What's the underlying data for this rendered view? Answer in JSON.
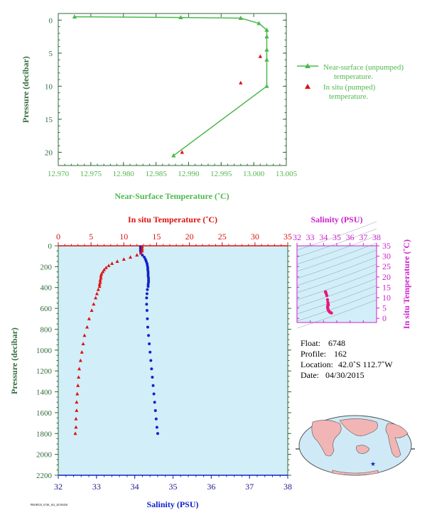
{
  "colors": {
    "green": "#4db84d",
    "dark_green": "#2f6b3a",
    "red": "#dd1111",
    "blue": "#1122cc",
    "navy": "#1a1a8c",
    "magenta": "#cc22cc",
    "pink": "#e8187c",
    "panel_bg": "#d2eef8",
    "land": "#f2b5b5",
    "ocean": "#cfeaf6"
  },
  "chart_data": [
    {
      "id": "near-surface",
      "type": "line",
      "xlabel": "Near-Surface Temperature (˚C)",
      "ylabel": "Pressure (decibar)",
      "xlim": [
        12.97,
        13.005
      ],
      "ylim": [
        22,
        -1
      ],
      "x_ticks": [
        12.97,
        12.975,
        12.98,
        12.985,
        12.99,
        12.995,
        13.0,
        13.005
      ],
      "x_tick_labels": [
        "12.970",
        "12.975",
        "12.980",
        "12.985",
        "12.990",
        "12.995",
        "13.000",
        "13.005"
      ],
      "y_ticks": [
        0,
        5,
        10,
        15,
        20
      ],
      "y_tick_labels": [
        "0",
        "5",
        "10",
        "15",
        "20"
      ],
      "series": [
        {
          "name": "Near-surface (unpumped) temperature.",
          "x": [
            12.9725,
            12.9888,
            12.998,
            13.0008,
            13.002,
            13.002,
            13.002,
            13.002,
            13.002,
            12.9877
          ],
          "y": [
            -0.5,
            -0.4,
            -0.3,
            0.5,
            1.5,
            2.5,
            4.5,
            6.0,
            10.0,
            20.5
          ]
        },
        {
          "name": "In situ (pumped) temperature.",
          "x": [
            13.001,
            12.998,
            12.989
          ],
          "y": [
            5.5,
            9.5,
            20.0
          ]
        }
      ],
      "legend": [
        {
          "line1": "Near-surface (unpumped)",
          "line2": "temperature."
        },
        {
          "line1": "In situ (pumped)",
          "line2": "temperature."
        }
      ],
      "legend_position": "right"
    },
    {
      "id": "profile",
      "type": "scatter",
      "top_xlabel": "In situ Temperature (˚C)",
      "bottom_xlabel": "Salinity (PSU)",
      "ylabel": "Pressure (decibar)",
      "temp_lim": [
        0,
        35
      ],
      "sal_lim": [
        32,
        38
      ],
      "ylim": [
        2200,
        0
      ],
      "temp_ticks": [
        "0",
        "5",
        "10",
        "15",
        "20",
        "25",
        "30",
        "35"
      ],
      "sal_ticks": [
        "32",
        "33",
        "34",
        "35",
        "36",
        "37",
        "38"
      ],
      "p_ticks": [
        "0",
        "200",
        "400",
        "600",
        "800",
        "1000",
        "1200",
        "1400",
        "1600",
        "1800",
        "2000",
        "2200"
      ],
      "temperature": {
        "pressure": [
          10,
          30,
          50,
          70,
          90,
          110,
          130,
          150,
          170,
          190,
          210,
          230,
          250,
          270,
          290,
          310,
          330,
          350,
          370,
          390,
          420,
          460,
          500,
          560,
          620,
          700,
          780,
          860,
          940,
          1020,
          1100,
          1180,
          1260,
          1340,
          1420,
          1500,
          1580,
          1660,
          1740,
          1800
        ],
        "values": [
          12.8,
          12.8,
          12.8,
          12.6,
          12.0,
          11.0,
          10.0,
          9.0,
          8.2,
          7.7,
          7.3,
          7.0,
          6.8,
          6.6,
          6.5,
          6.5,
          6.4,
          6.4,
          6.3,
          6.3,
          6.1,
          5.9,
          5.7,
          5.4,
          5.1,
          4.7,
          4.4,
          4.0,
          3.8,
          3.6,
          3.4,
          3.2,
          3.1,
          3.0,
          2.9,
          2.8,
          2.8,
          2.7,
          2.7,
          2.6
        ]
      },
      "salinity": {
        "pressure": [
          10,
          30,
          50,
          70,
          90,
          110,
          130,
          150,
          170,
          190,
          210,
          230,
          250,
          270,
          290,
          310,
          330,
          350,
          370,
          390,
          420,
          460,
          500,
          560,
          620,
          700,
          780,
          860,
          940,
          1020,
          1100,
          1180,
          1260,
          1340,
          1420,
          1500,
          1580,
          1660,
          1740,
          1800
        ],
        "values": [
          34.15,
          34.15,
          34.15,
          34.16,
          34.2,
          34.25,
          34.28,
          34.3,
          34.32,
          34.33,
          34.34,
          34.34,
          34.35,
          34.35,
          34.35,
          34.36,
          34.36,
          34.36,
          34.35,
          34.35,
          34.33,
          34.32,
          34.31,
          34.31,
          34.32,
          34.33,
          34.34,
          34.36,
          34.38,
          34.4,
          34.42,
          34.44,
          34.46,
          34.48,
          34.5,
          34.52,
          34.54,
          34.56,
          34.58,
          34.6
        ]
      }
    },
    {
      "id": "ts-diagram",
      "type": "scatter",
      "xlabel": "Salinity (PSU)",
      "ylabel": "In situ Temperature (˚C)",
      "xlim": [
        32,
        38
      ],
      "ylim": [
        -2,
        35
      ],
      "x_ticks": [
        "32",
        "33",
        "34",
        "35",
        "36",
        "37",
        "38"
      ],
      "y_ticks": [
        "0",
        "5",
        "10",
        "15",
        "20",
        "25",
        "30",
        "35"
      ],
      "points": {
        "salinity": [
          34.15,
          34.15,
          34.16,
          34.2,
          34.25,
          34.3,
          34.33,
          34.35,
          34.36,
          34.36,
          34.35,
          34.33,
          34.31,
          34.31,
          34.33,
          34.36,
          34.4,
          34.44,
          34.48,
          34.52,
          34.56,
          34.6
        ],
        "temperature": [
          12.8,
          12.8,
          12.6,
          12.0,
          11.0,
          9.0,
          7.7,
          6.8,
          6.5,
          6.4,
          6.3,
          6.1,
          5.7,
          5.1,
          4.7,
          4.0,
          3.6,
          3.2,
          3.0,
          2.8,
          2.7,
          2.6
        ]
      }
    }
  ],
  "info": {
    "float_label": "Float:",
    "float_value": "6748",
    "profile_label": "Profile:",
    "profile_value": "162",
    "location_label": "Location:",
    "location_value": "42.0˚S  112.7˚W",
    "date_label": "Date:",
    "date_value": "04/30/2015"
  },
  "map": {
    "marker_icon": "star-icon"
  },
  "footer_stamp": "PROFILE_6748_162_20150430"
}
